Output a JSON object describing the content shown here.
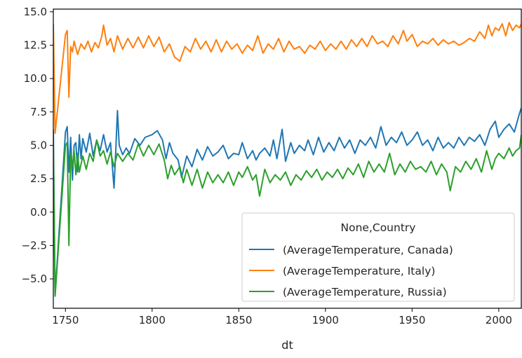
{
  "chart_data": {
    "type": "line",
    "title": "",
    "xlabel": "dt",
    "ylabel": "",
    "xlim": [
      1743,
      2013
    ],
    "ylim": [
      -7.2,
      15.2
    ],
    "xticks": [
      1750,
      1800,
      1850,
      1900,
      1950,
      2000
    ],
    "yticks": [
      -5.0,
      -2.5,
      0.0,
      2.5,
      5.0,
      7.5,
      10.0,
      12.5,
      15.0
    ],
    "xtick_labels": [
      "1750",
      "1800",
      "1850",
      "1900",
      "1950",
      "2000"
    ],
    "ytick_labels": [
      "−5.0",
      "−2.5",
      "0.0",
      "2.5",
      "5.0",
      "7.5",
      "10.0",
      "12.5",
      "15.0"
    ],
    "grid": false,
    "legend": {
      "title": "None,Country",
      "placement": "lower-right"
    },
    "series": [
      {
        "name": "(AverageTemperature, Canada)",
        "color": "#1f77b4",
        "points": [
          [
            1743,
            6.2
          ],
          [
            1744,
            -6.2
          ],
          [
            1750,
            6.0
          ],
          [
            1751,
            6.4
          ],
          [
            1752,
            3.0
          ],
          [
            1753,
            5.6
          ],
          [
            1754,
            2.4
          ],
          [
            1755,
            5.0
          ],
          [
            1756,
            5.2
          ],
          [
            1757,
            3.0
          ],
          [
            1758,
            5.8
          ],
          [
            1759,
            4.0
          ],
          [
            1760,
            5.5
          ],
          [
            1762,
            4.5
          ],
          [
            1764,
            5.9
          ],
          [
            1766,
            4.2
          ],
          [
            1768,
            5.4
          ],
          [
            1770,
            4.6
          ],
          [
            1772,
            5.8
          ],
          [
            1774,
            4.5
          ],
          [
            1776,
            5.2
          ],
          [
            1778,
            1.8
          ],
          [
            1779,
            4.5
          ],
          [
            1780,
            7.6
          ],
          [
            1781,
            5.0
          ],
          [
            1783,
            4.3
          ],
          [
            1785,
            4.8
          ],
          [
            1787,
            4.4
          ],
          [
            1790,
            5.5
          ],
          [
            1793,
            5.0
          ],
          [
            1796,
            5.6
          ],
          [
            1800,
            5.8
          ],
          [
            1803,
            6.1
          ],
          [
            1806,
            5.4
          ],
          [
            1808,
            4.0
          ],
          [
            1810,
            5.2
          ],
          [
            1812,
            4.4
          ],
          [
            1815,
            3.9
          ],
          [
            1817,
            2.6
          ],
          [
            1820,
            4.2
          ],
          [
            1823,
            3.4
          ],
          [
            1826,
            4.7
          ],
          [
            1829,
            3.9
          ],
          [
            1832,
            4.9
          ],
          [
            1835,
            4.2
          ],
          [
            1838,
            4.5
          ],
          [
            1841,
            5.0
          ],
          [
            1844,
            4.0
          ],
          [
            1847,
            4.4
          ],
          [
            1850,
            4.3
          ],
          [
            1852,
            5.2
          ],
          [
            1855,
            4.0
          ],
          [
            1858,
            4.6
          ],
          [
            1860,
            3.9
          ],
          [
            1862,
            4.4
          ],
          [
            1865,
            4.8
          ],
          [
            1868,
            4.2
          ],
          [
            1870,
            5.4
          ],
          [
            1872,
            4.0
          ],
          [
            1875,
            6.2
          ],
          [
            1877,
            3.8
          ],
          [
            1880,
            5.2
          ],
          [
            1882,
            4.4
          ],
          [
            1885,
            5.0
          ],
          [
            1888,
            4.6
          ],
          [
            1890,
            5.4
          ],
          [
            1893,
            4.3
          ],
          [
            1896,
            5.6
          ],
          [
            1899,
            4.5
          ],
          [
            1902,
            5.2
          ],
          [
            1905,
            4.6
          ],
          [
            1908,
            5.6
          ],
          [
            1911,
            4.8
          ],
          [
            1914,
            5.4
          ],
          [
            1917,
            4.4
          ],
          [
            1920,
            5.4
          ],
          [
            1923,
            5.0
          ],
          [
            1926,
            5.6
          ],
          [
            1929,
            4.8
          ],
          [
            1932,
            6.4
          ],
          [
            1935,
            5.0
          ],
          [
            1938,
            5.6
          ],
          [
            1941,
            5.2
          ],
          [
            1944,
            6.0
          ],
          [
            1947,
            5.0
          ],
          [
            1950,
            5.4
          ],
          [
            1953,
            6.0
          ],
          [
            1956,
            5.0
          ],
          [
            1959,
            5.4
          ],
          [
            1962,
            4.6
          ],
          [
            1965,
            5.6
          ],
          [
            1968,
            4.8
          ],
          [
            1971,
            5.2
          ],
          [
            1974,
            4.8
          ],
          [
            1977,
            5.6
          ],
          [
            1980,
            5.0
          ],
          [
            1983,
            5.6
          ],
          [
            1986,
            5.3
          ],
          [
            1989,
            5.8
          ],
          [
            1992,
            5.0
          ],
          [
            1995,
            6.2
          ],
          [
            1998,
            6.8
          ],
          [
            2000,
            5.6
          ],
          [
            2003,
            6.2
          ],
          [
            2006,
            6.6
          ],
          [
            2009,
            6.0
          ],
          [
            2012,
            7.4
          ],
          [
            2013,
            7.8
          ]
        ]
      },
      {
        "name": "(AverageTemperature, Italy)",
        "color": "#ff7f0e",
        "points": [
          [
            1743,
            14.1
          ],
          [
            1744,
            5.9
          ],
          [
            1750,
            13.3
          ],
          [
            1751,
            13.6
          ],
          [
            1752,
            8.6
          ],
          [
            1753,
            12.4
          ],
          [
            1754,
            12.0
          ],
          [
            1755,
            12.8
          ],
          [
            1757,
            11.8
          ],
          [
            1759,
            12.6
          ],
          [
            1761,
            12.2
          ],
          [
            1763,
            12.8
          ],
          [
            1765,
            12.0
          ],
          [
            1767,
            12.7
          ],
          [
            1769,
            12.3
          ],
          [
            1771,
            13.2
          ],
          [
            1772,
            14.0
          ],
          [
            1774,
            12.5
          ],
          [
            1776,
            13.0
          ],
          [
            1778,
            12.0
          ],
          [
            1780,
            13.2
          ],
          [
            1783,
            12.2
          ],
          [
            1786,
            13.0
          ],
          [
            1789,
            12.3
          ],
          [
            1792,
            13.1
          ],
          [
            1795,
            12.3
          ],
          [
            1798,
            13.2
          ],
          [
            1801,
            12.4
          ],
          [
            1804,
            13.1
          ],
          [
            1807,
            12.0
          ],
          [
            1810,
            12.6
          ],
          [
            1813,
            11.6
          ],
          [
            1816,
            11.3
          ],
          [
            1819,
            12.4
          ],
          [
            1822,
            12.0
          ],
          [
            1825,
            13.0
          ],
          [
            1828,
            12.2
          ],
          [
            1831,
            12.8
          ],
          [
            1834,
            12.0
          ],
          [
            1837,
            12.9
          ],
          [
            1840,
            12.0
          ],
          [
            1843,
            12.8
          ],
          [
            1846,
            12.2
          ],
          [
            1849,
            12.6
          ],
          [
            1852,
            11.9
          ],
          [
            1855,
            12.5
          ],
          [
            1858,
            12.1
          ],
          [
            1861,
            13.2
          ],
          [
            1864,
            11.9
          ],
          [
            1867,
            12.6
          ],
          [
            1870,
            12.2
          ],
          [
            1873,
            13.0
          ],
          [
            1876,
            12.0
          ],
          [
            1879,
            12.8
          ],
          [
            1882,
            12.2
          ],
          [
            1885,
            12.4
          ],
          [
            1888,
            11.9
          ],
          [
            1891,
            12.5
          ],
          [
            1894,
            12.2
          ],
          [
            1897,
            12.8
          ],
          [
            1900,
            12.1
          ],
          [
            1903,
            12.6
          ],
          [
            1906,
            12.2
          ],
          [
            1909,
            12.8
          ],
          [
            1912,
            12.2
          ],
          [
            1915,
            12.9
          ],
          [
            1918,
            12.4
          ],
          [
            1921,
            13.0
          ],
          [
            1924,
            12.4
          ],
          [
            1927,
            13.2
          ],
          [
            1930,
            12.6
          ],
          [
            1933,
            12.8
          ],
          [
            1936,
            12.4
          ],
          [
            1939,
            13.2
          ],
          [
            1942,
            12.6
          ],
          [
            1945,
            13.6
          ],
          [
            1947,
            12.8
          ],
          [
            1950,
            13.3
          ],
          [
            1953,
            12.4
          ],
          [
            1956,
            12.8
          ],
          [
            1959,
            12.6
          ],
          [
            1962,
            13.0
          ],
          [
            1965,
            12.5
          ],
          [
            1968,
            12.9
          ],
          [
            1971,
            12.6
          ],
          [
            1974,
            12.8
          ],
          [
            1977,
            12.5
          ],
          [
            1980,
            12.7
          ],
          [
            1983,
            13.0
          ],
          [
            1986,
            12.8
          ],
          [
            1989,
            13.5
          ],
          [
            1992,
            13.0
          ],
          [
            1994,
            14.0
          ],
          [
            1996,
            13.2
          ],
          [
            1998,
            13.8
          ],
          [
            2000,
            13.6
          ],
          [
            2002,
            14.1
          ],
          [
            2004,
            13.2
          ],
          [
            2006,
            14.2
          ],
          [
            2008,
            13.6
          ],
          [
            2010,
            14.0
          ],
          [
            2012,
            13.8
          ],
          [
            2013,
            14.1
          ]
        ]
      },
      {
        "name": "(AverageTemperature, Russia)",
        "color": "#2ca02c",
        "points": [
          [
            1743,
            5.1
          ],
          [
            1744,
            -6.3
          ],
          [
            1750,
            5.0
          ],
          [
            1751,
            5.2
          ],
          [
            1752,
            -2.5
          ],
          [
            1753,
            4.4
          ],
          [
            1754,
            3.4
          ],
          [
            1755,
            4.6
          ],
          [
            1756,
            2.8
          ],
          [
            1757,
            4.4
          ],
          [
            1758,
            3.0
          ],
          [
            1760,
            4.2
          ],
          [
            1762,
            3.2
          ],
          [
            1764,
            4.4
          ],
          [
            1766,
            3.8
          ],
          [
            1768,
            5.4
          ],
          [
            1770,
            4.2
          ],
          [
            1772,
            4.6
          ],
          [
            1774,
            3.6
          ],
          [
            1776,
            4.5
          ],
          [
            1778,
            3.4
          ],
          [
            1780,
            4.4
          ],
          [
            1783,
            3.8
          ],
          [
            1786,
            4.4
          ],
          [
            1789,
            3.9
          ],
          [
            1792,
            5.1
          ],
          [
            1795,
            4.2
          ],
          [
            1798,
            5.0
          ],
          [
            1801,
            4.3
          ],
          [
            1804,
            5.1
          ],
          [
            1807,
            3.9
          ],
          [
            1809,
            2.5
          ],
          [
            1811,
            3.5
          ],
          [
            1813,
            2.8
          ],
          [
            1816,
            3.4
          ],
          [
            1818,
            2.2
          ],
          [
            1820,
            3.2
          ],
          [
            1823,
            2.0
          ],
          [
            1826,
            3.2
          ],
          [
            1829,
            1.8
          ],
          [
            1832,
            3.0
          ],
          [
            1835,
            2.2
          ],
          [
            1838,
            2.8
          ],
          [
            1841,
            2.2
          ],
          [
            1844,
            3.0
          ],
          [
            1847,
            2.0
          ],
          [
            1850,
            3.0
          ],
          [
            1852,
            2.6
          ],
          [
            1855,
            3.4
          ],
          [
            1858,
            2.4
          ],
          [
            1860,
            2.8
          ],
          [
            1862,
            1.2
          ],
          [
            1865,
            3.2
          ],
          [
            1868,
            2.2
          ],
          [
            1871,
            2.8
          ],
          [
            1874,
            2.4
          ],
          [
            1877,
            3.0
          ],
          [
            1880,
            2.0
          ],
          [
            1883,
            2.8
          ],
          [
            1886,
            2.4
          ],
          [
            1889,
            3.1
          ],
          [
            1892,
            2.6
          ],
          [
            1895,
            3.2
          ],
          [
            1898,
            2.4
          ],
          [
            1901,
            3.0
          ],
          [
            1904,
            2.6
          ],
          [
            1907,
            3.2
          ],
          [
            1910,
            2.5
          ],
          [
            1913,
            3.3
          ],
          [
            1916,
            2.8
          ],
          [
            1919,
            3.6
          ],
          [
            1922,
            2.6
          ],
          [
            1925,
            3.8
          ],
          [
            1928,
            3.0
          ],
          [
            1931,
            3.6
          ],
          [
            1934,
            3.0
          ],
          [
            1937,
            4.4
          ],
          [
            1940,
            2.8
          ],
          [
            1943,
            3.6
          ],
          [
            1946,
            3.0
          ],
          [
            1949,
            3.8
          ],
          [
            1952,
            3.2
          ],
          [
            1955,
            3.4
          ],
          [
            1958,
            3.0
          ],
          [
            1961,
            3.8
          ],
          [
            1964,
            2.8
          ],
          [
            1967,
            3.6
          ],
          [
            1970,
            3.0
          ],
          [
            1972,
            1.6
          ],
          [
            1975,
            3.4
          ],
          [
            1978,
            3.0
          ],
          [
            1981,
            3.8
          ],
          [
            1984,
            3.2
          ],
          [
            1987,
            4.0
          ],
          [
            1990,
            3.0
          ],
          [
            1993,
            4.6
          ],
          [
            1996,
            3.2
          ],
          [
            1998,
            4.0
          ],
          [
            2000,
            4.4
          ],
          [
            2003,
            4.0
          ],
          [
            2006,
            4.8
          ],
          [
            2008,
            4.2
          ],
          [
            2010,
            4.6
          ],
          [
            2012,
            4.8
          ],
          [
            2013,
            5.8
          ]
        ]
      }
    ]
  }
}
